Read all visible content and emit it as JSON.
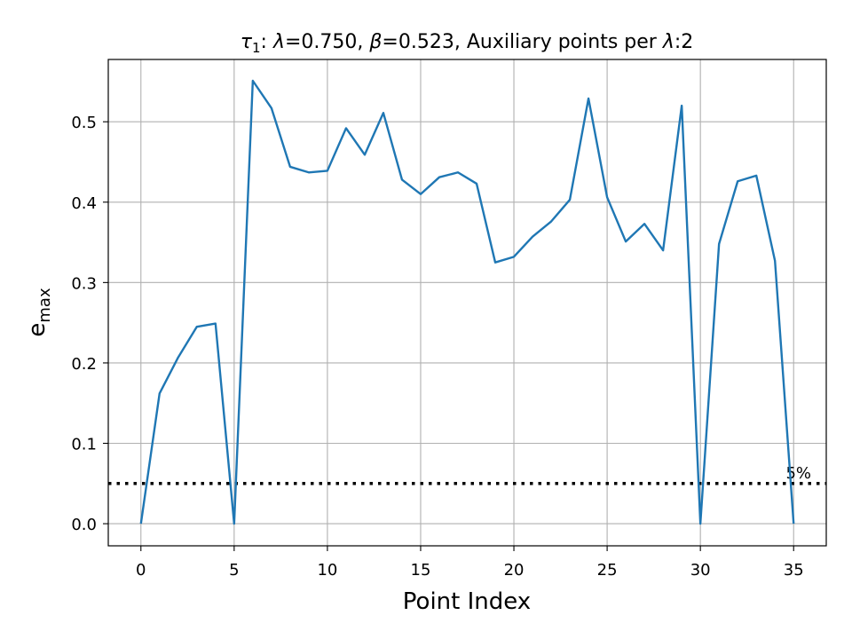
{
  "chart_data": {
    "type": "line",
    "title": {
      "tau": "τ",
      "tau_sub": "1",
      "part1": ": ",
      "lambda_sym": "λ",
      "lambda_val": "=0.750, ",
      "beta_sym": "β",
      "beta_val": "=0.523, Auxiliary points per ",
      "lambda_sym2": "λ",
      "tail": ":2"
    },
    "xlabel": "Point Index",
    "ylabel": {
      "main": "e",
      "sub": "max"
    },
    "xlim": [
      -1.75,
      36.75
    ],
    "ylim": [
      -0.0275,
      0.5775
    ],
    "xticks": [
      0,
      5,
      10,
      15,
      20,
      25,
      30,
      35
    ],
    "xtick_labels": [
      "0",
      "5",
      "10",
      "15",
      "20",
      "25",
      "30",
      "35"
    ],
    "yticks": [
      0.0,
      0.1,
      0.2,
      0.3,
      0.4,
      0.5
    ],
    "ytick_labels": [
      "0.0",
      "0.1",
      "0.2",
      "0.3",
      "0.4",
      "0.5"
    ],
    "grid": true,
    "series": [
      {
        "color": "#1f77b4",
        "x": [
          0,
          1,
          2,
          3,
          4,
          5,
          6,
          7,
          8,
          9,
          10,
          11,
          12,
          13,
          14,
          15,
          16,
          17,
          18,
          19,
          20,
          21,
          22,
          23,
          24,
          25,
          26,
          27,
          28,
          29,
          30,
          31,
          32,
          33,
          34,
          35
        ],
        "y": [
          0.0,
          0.162,
          0.207,
          0.245,
          0.249,
          0.0,
          0.551,
          0.517,
          0.444,
          0.437,
          0.439,
          0.492,
          0.459,
          0.511,
          0.428,
          0.41,
          0.431,
          0.437,
          0.423,
          0.325,
          0.332,
          0.357,
          0.376,
          0.403,
          0.529,
          0.406,
          0.351,
          0.373,
          0.34,
          0.52,
          0.0,
          0.348,
          0.426,
          0.433,
          0.327,
          0.0
        ]
      }
    ],
    "reference_line": {
      "y": 0.05,
      "label": "5%",
      "color": "#000000"
    }
  }
}
